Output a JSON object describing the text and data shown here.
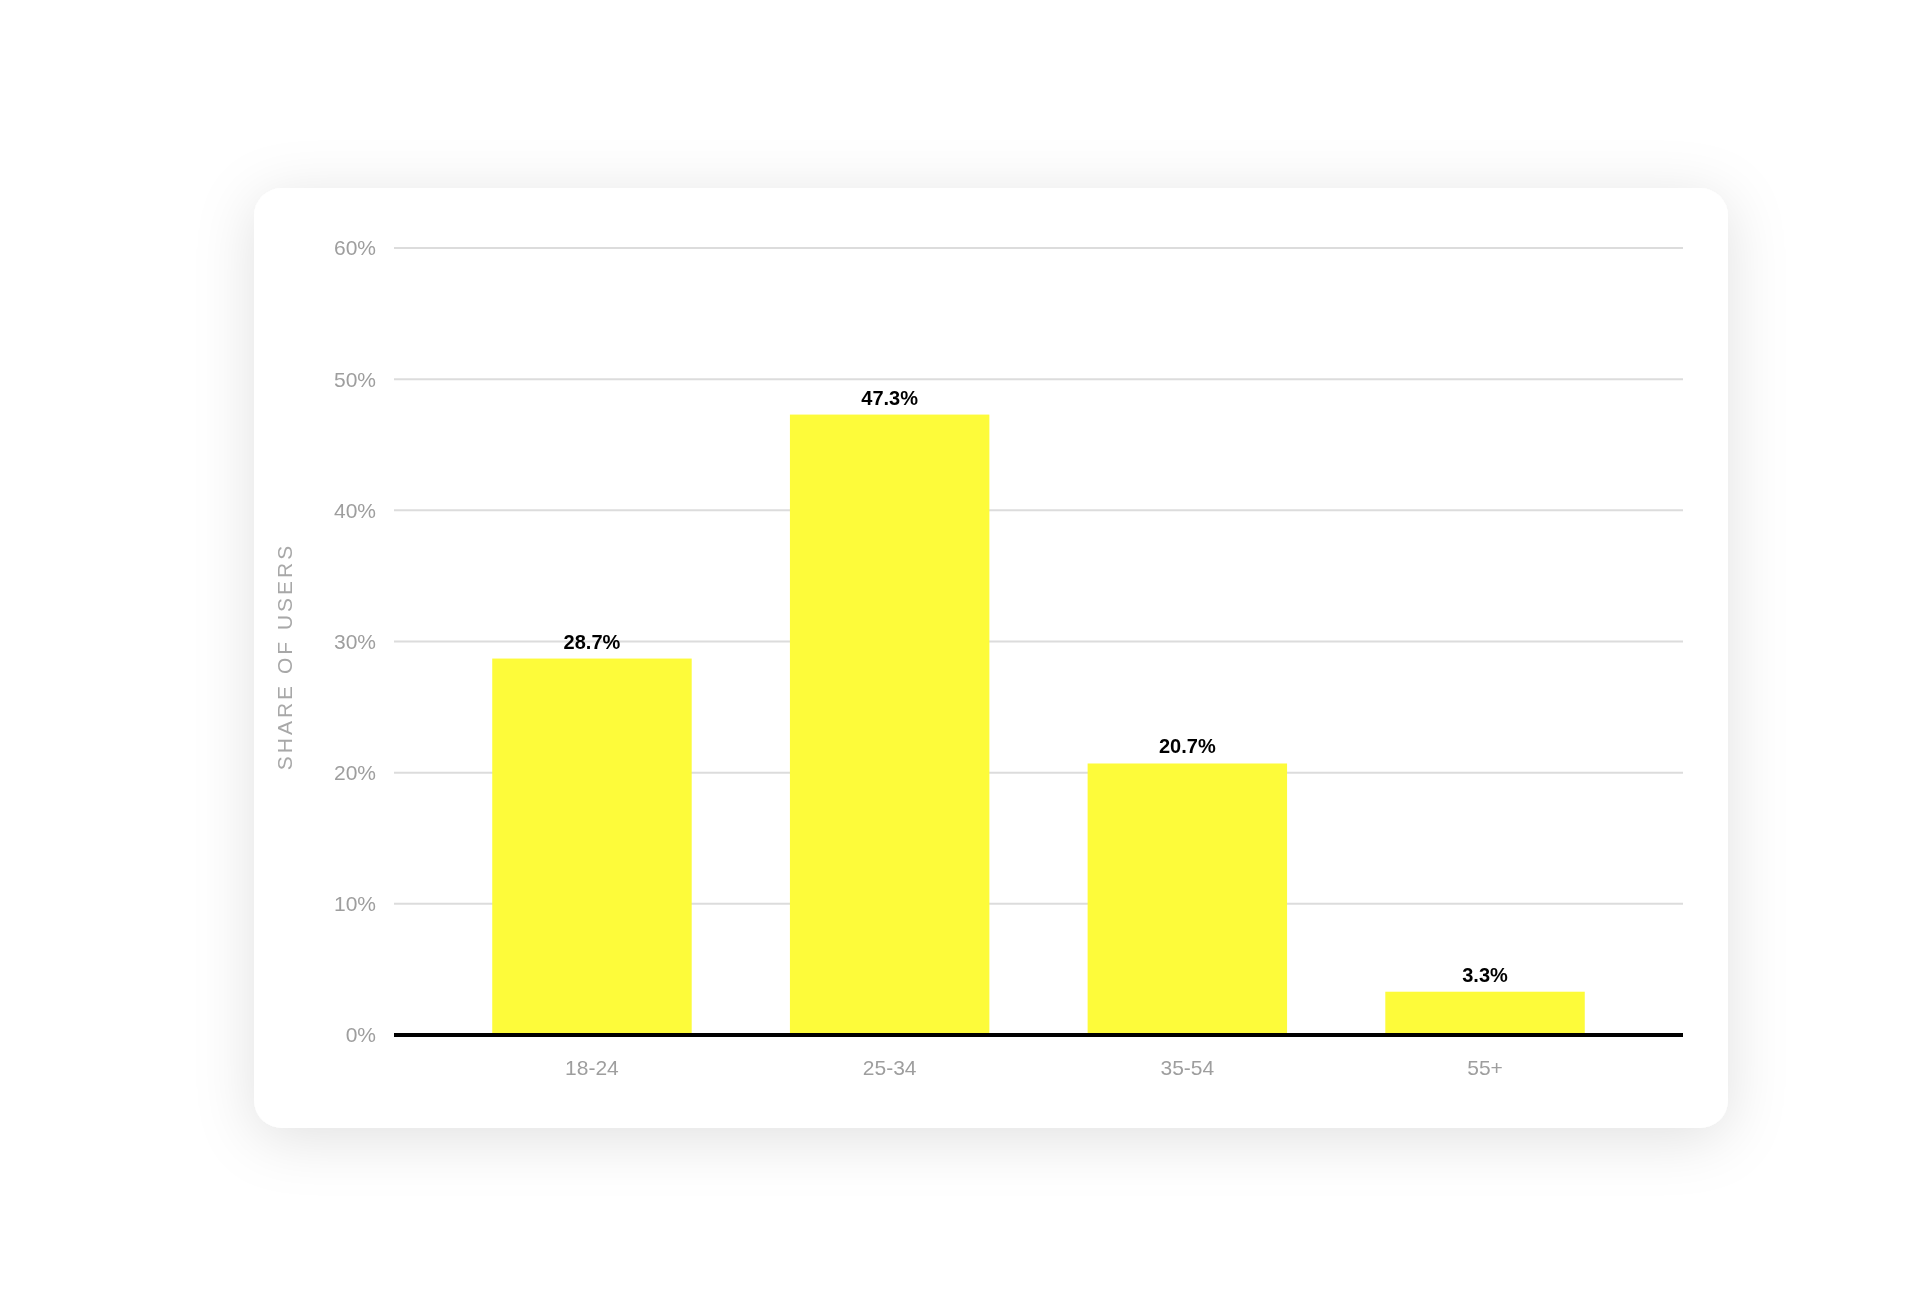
{
  "chart_data": {
    "type": "bar",
    "ylabel": "SHARE OF USERS",
    "categories": [
      "18-24",
      "25-34",
      "35-54",
      "55+"
    ],
    "values": [
      28.7,
      47.3,
      20.7,
      3.3
    ],
    "value_labels": [
      "28.7%",
      "47.3%",
      "20.7%",
      "3.3%"
    ],
    "color": "#fdfb3a",
    "ylim": [
      0,
      60
    ],
    "yticks": [
      {
        "value": 0,
        "label": "0%"
      },
      {
        "value": 10,
        "label": "10%"
      },
      {
        "value": 20,
        "label": "20%"
      },
      {
        "value": 30,
        "label": "30%"
      },
      {
        "value": 40,
        "label": "40%"
      },
      {
        "value": 50,
        "label": "50%"
      },
      {
        "value": 60,
        "label": "60%"
      }
    ],
    "grid": "y"
  }
}
